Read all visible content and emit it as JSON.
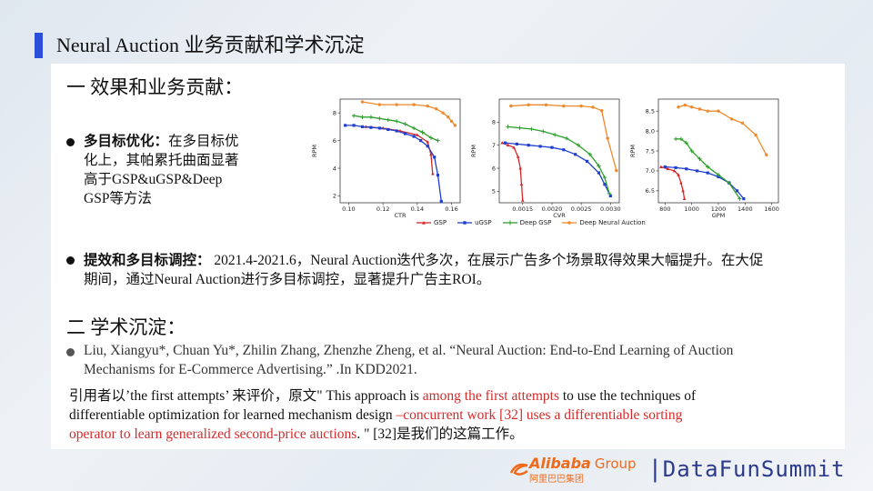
{
  "slide": {
    "title": "Neural Auction 业务贡献和学术沉淀"
  },
  "section1": {
    "heading": "一 效果和业务贡献：",
    "bullet1": {
      "label": "多目标优化：",
      "text_line1": "在多目标优",
      "text_line2": "化上，其帕累托曲面显著",
      "text_line3": "高于GSP&uGSP&Deep",
      "text_line4": "GSP等方法"
    },
    "bullet2": {
      "label": "提效和多目标调控：",
      "text_line1": " 2021.4-2021.6，Neural Auction迭代多次，在展示广告多个场景取得效果大幅提升。在大促",
      "text_line2": "期间，通过Neural Auction进行多目标调控，显著提升广告主ROI。"
    }
  },
  "section2": {
    "heading": "二 学术沉淀：",
    "ref_line1": "Liu, Xiangyu*, Chuan Yu*, Zhilin Zhang, Zhenzhe Zheng, et al. “Neural Auction: End-to-End Learning of Auction",
    "ref_line2": "Mechanisms for E-Commerce Advertising.” .In KDD2021.",
    "cite_p1": "引用者以’the first attempts’ 来评价，原文\" This approach is ",
    "cite_red1": "among the first attempts",
    "cite_p2": " to use the techniques of",
    "cite_line2_black": "differentiable optimization for learned mechanism design ",
    "cite_line2_red": "–concurrent work [32] uses a differentiable sorting",
    "cite_line3_red": "operator to learn generalized second-price auctions",
    "cite_line3_black": ". \" [32]是我们的这篇工作。"
  },
  "brand": {
    "alibaba": "Alibaba",
    "group": "Group",
    "alibaba_cn": "阿里巴巴集团",
    "separator": "|",
    "datafun": "DataFunSummit"
  },
  "colors": {
    "accent": "#2b4fd8",
    "gsp": "#d62728",
    "ugsp": "#1f3fd0",
    "deep_gsp": "#2ca02c",
    "neural": "#f0892a",
    "red_text": "#d42a2a",
    "brand_orange": "#f06a1a",
    "brand_navy": "#2b3a8c"
  },
  "chart_data": [
    {
      "type": "line",
      "xlabel": "CTR",
      "ylabel": "RPM",
      "xlim": [
        0.095,
        0.165
      ],
      "ylim": [
        1.5,
        9.0
      ],
      "xticks": [
        "0.10",
        "0.12",
        "0.14",
        "0.16"
      ],
      "xtick_values": [
        0.1,
        0.12,
        0.14,
        0.16
      ],
      "yticks": [
        "2",
        "4",
        "6",
        "8"
      ],
      "ytick_values": [
        2,
        4,
        6,
        8
      ],
      "series": [
        {
          "name": "GSP",
          "x": [
            0.11,
            0.12,
            0.13,
            0.14,
            0.146,
            0.148,
            0.149
          ],
          "y": [
            7.0,
            6.9,
            6.7,
            6.4,
            5.9,
            5.0,
            3.6
          ]
        },
        {
          "name": "uGSP",
          "x": [
            0.098,
            0.103,
            0.108,
            0.113,
            0.118,
            0.123,
            0.128,
            0.133,
            0.138,
            0.142,
            0.146,
            0.15,
            0.152,
            0.154
          ],
          "y": [
            7.1,
            7.1,
            7.0,
            6.95,
            6.9,
            6.8,
            6.7,
            6.5,
            6.3,
            6.0,
            5.6,
            4.8,
            3.5,
            1.6
          ]
        },
        {
          "name": "Deep GSP",
          "x": [
            0.103,
            0.108,
            0.113,
            0.118,
            0.123,
            0.128,
            0.133,
            0.138,
            0.143,
            0.148,
            0.152
          ],
          "y": [
            7.8,
            7.7,
            7.7,
            7.6,
            7.5,
            7.4,
            7.2,
            6.9,
            6.6,
            6.2,
            6.0
          ]
        },
        {
          "name": "Deep Neural Auction",
          "x": [
            0.108,
            0.118,
            0.128,
            0.138,
            0.146,
            0.151,
            0.155,
            0.158,
            0.16,
            0.162
          ],
          "y": [
            8.8,
            8.6,
            8.6,
            8.6,
            8.5,
            8.3,
            8.0,
            7.7,
            7.4,
            7.1
          ]
        }
      ]
    },
    {
      "type": "line",
      "xlabel": "CVR",
      "ylabel": "RPM",
      "xlim": [
        0.0011,
        0.00315
      ],
      "ylim": [
        4.5,
        9.0
      ],
      "xticks": [
        "0.0015",
        "0.0020",
        "0.0025",
        "0.0030"
      ],
      "xtick_values": [
        0.0015,
        0.002,
        0.0025,
        0.003
      ],
      "yticks": [
        "5",
        "6",
        "7",
        "8"
      ],
      "ytick_values": [
        5,
        6,
        7,
        8
      ],
      "series": [
        {
          "name": "GSP",
          "x": [
            0.00115,
            0.00125,
            0.00135,
            0.00142,
            0.00146,
            0.00148,
            0.0015
          ],
          "y": [
            7.1,
            7.0,
            6.9,
            6.5,
            6.0,
            5.3,
            4.6
          ]
        },
        {
          "name": "uGSP",
          "x": [
            0.0012,
            0.0014,
            0.0016,
            0.0018,
            0.002,
            0.0022,
            0.0024,
            0.0026,
            0.0028,
            0.0029,
            0.003
          ],
          "y": [
            7.1,
            7.05,
            7.0,
            6.95,
            6.9,
            6.8,
            6.6,
            6.3,
            5.8,
            5.3,
            4.8
          ]
        },
        {
          "name": "Deep GSP",
          "x": [
            0.00125,
            0.00145,
            0.00165,
            0.00185,
            0.00205,
            0.00225,
            0.00245,
            0.00265,
            0.0028,
            0.0029,
            0.00298
          ],
          "y": [
            7.8,
            7.75,
            7.7,
            7.6,
            7.45,
            7.3,
            7.0,
            6.6,
            6.1,
            5.6,
            4.9
          ]
        },
        {
          "name": "Deep Neural Auction",
          "x": [
            0.0013,
            0.0016,
            0.0019,
            0.0022,
            0.0025,
            0.0027,
            0.00285,
            0.00295,
            0.0031
          ],
          "y": [
            8.7,
            8.75,
            8.75,
            8.7,
            8.7,
            8.65,
            8.5,
            7.3,
            5.9
          ]
        }
      ]
    },
    {
      "type": "line",
      "xlabel": "GPM",
      "ylabel": "RPM",
      "xlim": [
        750,
        1650
      ],
      "ylim": [
        6.2,
        8.8
      ],
      "xticks": [
        "800",
        "1000",
        "1200",
        "1400",
        "1600"
      ],
      "xtick_values": [
        800,
        1000,
        1200,
        1400,
        1600
      ],
      "yticks": [
        "6.5",
        "7.0",
        "7.5",
        "8.0",
        "8.5"
      ],
      "ytick_values": [
        6.5,
        7.0,
        7.5,
        8.0,
        8.5
      ],
      "series": [
        {
          "name": "GSP",
          "x": [
            770,
            820,
            870,
            900,
            920,
            935,
            945
          ],
          "y": [
            7.1,
            7.05,
            7.0,
            6.9,
            6.7,
            6.5,
            6.3
          ]
        },
        {
          "name": "uGSP",
          "x": [
            800,
            880,
            960,
            1040,
            1120,
            1200,
            1280,
            1340,
            1390
          ],
          "y": [
            7.1,
            7.08,
            7.05,
            7.0,
            6.95,
            6.85,
            6.7,
            6.5,
            6.3
          ]
        },
        {
          "name": "Deep GSP",
          "x": [
            880,
            920,
            960,
            1000,
            1060,
            1120,
            1200,
            1280,
            1360
          ],
          "y": [
            7.8,
            7.8,
            7.7,
            7.5,
            7.3,
            7.1,
            6.9,
            6.7,
            6.3
          ]
        },
        {
          "name": "Deep Neural Auction",
          "x": [
            900,
            950,
            1000,
            1060,
            1120,
            1200,
            1300,
            1380,
            1480,
            1560
          ],
          "y": [
            8.6,
            8.65,
            8.6,
            8.55,
            8.5,
            8.5,
            8.3,
            8.2,
            7.9,
            7.4
          ]
        }
      ]
    }
  ]
}
